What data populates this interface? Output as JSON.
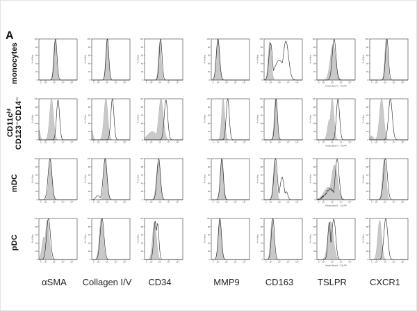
{
  "figure": {
    "panel_letter": "A",
    "row_labels": [
      {
        "lines": [
          "monocytes"
        ]
      },
      {
        "lines": [
          "CD11cʰⁱ",
          "CD123⁻CD14⁻"
        ]
      },
      {
        "lines": [
          "mDC"
        ]
      },
      {
        "lines": [
          "pDC"
        ]
      }
    ],
    "column_labels": [
      "αSMA",
      "Collagen I/V",
      "CD34",
      "MMP9",
      "CD163",
      "TSLPR",
      "CXCR1"
    ]
  },
  "colors": {
    "histogram_fill": "#c9c9c9",
    "histogram_fill_edge": "#9a9a9a",
    "open_curve_line": "#1a1a1a",
    "axis": "#222222",
    "tick_text": "#444444",
    "background": "#ffffff"
  },
  "chart_data": {
    "type": "area",
    "subtype": "flow-cytometry-overlay-histograms",
    "title": "",
    "rows": [
      "monocytes",
      "CD11cʰⁱ CD123⁻CD14⁻",
      "mDC",
      "pDC"
    ],
    "columns": [
      "αSMA",
      "Collagen I/V",
      "CD34",
      "MMP9",
      "CD163",
      "TSLPR",
      "CXCR1"
    ],
    "y_axis": {
      "label": "% of Max",
      "ticks": [
        "100",
        "80",
        "60",
        "40",
        "20",
        "0"
      ],
      "range": [
        0,
        100
      ],
      "grid": false
    },
    "x_axis": {
      "ticks": [
        "0",
        "10²",
        "10³",
        "10⁴",
        "10⁵"
      ],
      "scale": "log",
      "captions": [
        "<FL2-H>: aSMA",
        "<FL1-H>: Collagen I and V",
        "<FL2-H>: CD34",
        "<FL1-H>: MMP9",
        "<FL2-H>: CD163",
        "Pacific Blue-A :: TSLPR",
        "<FL2-H>: CXCR1"
      ]
    },
    "series_note": "filled = gray filled histogram, open = black outline histogram; peaks as [center 0-1, width, height 0-1]",
    "panels": [
      {
        "row": 0,
        "col": 0,
        "filled": [
          [
            0.42,
            0.036,
            0.97
          ]
        ],
        "open": [
          [
            0.435,
            0.038,
            1.0
          ]
        ],
        "jag": 0
      },
      {
        "row": 0,
        "col": 1,
        "filled": [
          [
            0.4,
            0.035,
            1.0
          ]
        ],
        "open": [
          [
            0.41,
            0.037,
            1.0
          ]
        ],
        "jag": 0
      },
      {
        "row": 0,
        "col": 2,
        "filled": [
          [
            0.4,
            0.035,
            0.95
          ]
        ],
        "open": [
          [
            0.42,
            0.037,
            1.0
          ]
        ],
        "jag": 0
      },
      {
        "row": 0,
        "col": 3,
        "filled": [
          [
            0.17,
            0.042,
            1.0
          ]
        ],
        "open": [
          [
            0.175,
            0.044,
            1.0
          ]
        ],
        "jag": 0
      },
      {
        "row": 0,
        "col": 4,
        "filled": [
          [
            0.15,
            0.04,
            0.95
          ]
        ],
        "open": [
          [
            0.17,
            0.045,
            0.9
          ],
          [
            0.4,
            0.13,
            0.48
          ],
          [
            0.57,
            0.07,
            0.95
          ]
        ],
        "jag": 0.015
      },
      {
        "row": 0,
        "col": 5,
        "filled": [
          [
            0.42,
            0.07,
            0.88
          ]
        ],
        "open": [
          [
            0.45,
            0.048,
            1.0
          ]
        ],
        "jag": 0.02
      },
      {
        "row": 0,
        "col": 6,
        "filled": [
          [
            0.43,
            0.036,
            1.0
          ]
        ],
        "open": [
          [
            0.45,
            0.038,
            1.0
          ]
        ],
        "jag": 0
      },
      {
        "row": 1,
        "col": 0,
        "filled": [
          [
            0.33,
            0.05,
            1.0
          ],
          [
            0.0,
            0.03,
            0.25
          ]
        ],
        "open": [
          [
            0.5,
            0.04,
            0.97
          ]
        ],
        "jag": 0
      },
      {
        "row": 1,
        "col": 1,
        "filled": [
          [
            0.37,
            0.05,
            1.0
          ],
          [
            0.0,
            0.03,
            0.25
          ]
        ],
        "open": [
          [
            0.54,
            0.04,
            1.0
          ]
        ],
        "jag": 0
      },
      {
        "row": 1,
        "col": 2,
        "filled": [
          [
            0.43,
            0.06,
            1.0
          ],
          [
            0.2,
            0.12,
            0.2
          ]
        ],
        "open": [
          [
            0.56,
            0.045,
            0.97
          ]
        ],
        "jag": 0
      },
      {
        "row": 1,
        "col": 3,
        "filled": [
          [
            0.31,
            0.04,
            1.0
          ]
        ],
        "open": [
          [
            0.43,
            0.04,
            1.0
          ]
        ],
        "jag": 0
      },
      {
        "row": 1,
        "col": 4,
        "filled": [
          [
            0.3,
            0.035,
            1.0
          ]
        ],
        "open": [
          [
            0.315,
            0.035,
            1.0
          ]
        ],
        "jag": 0
      },
      {
        "row": 1,
        "col": 5,
        "filled": [
          [
            0.4,
            0.045,
            1.0
          ],
          [
            0.33,
            0.05,
            0.5
          ]
        ],
        "open": [
          [
            0.55,
            0.042,
            1.0
          ]
        ],
        "jag": 0.02
      },
      {
        "row": 1,
        "col": 6,
        "filled": [
          [
            0.31,
            0.055,
            1.0
          ],
          [
            0.05,
            0.04,
            0.1
          ]
        ],
        "open": [
          [
            0.54,
            0.05,
            1.0
          ]
        ],
        "jag": 0
      },
      {
        "row": 2,
        "col": 0,
        "filled": [
          [
            0.3,
            0.042,
            0.97
          ]
        ],
        "open": [
          [
            0.29,
            0.05,
            1.0
          ]
        ],
        "jag": 0
      },
      {
        "row": 2,
        "col": 1,
        "filled": [
          [
            0.36,
            0.042,
            1.0
          ]
        ],
        "open": [
          [
            0.35,
            0.05,
            1.0
          ],
          [
            0.16,
            0.05,
            0.1
          ]
        ],
        "jag": 0
      },
      {
        "row": 2,
        "col": 2,
        "filled": [
          [
            0.36,
            0.05,
            0.93
          ]
        ],
        "open": [
          [
            0.37,
            0.045,
            1.0
          ]
        ],
        "jag": 0
      },
      {
        "row": 2,
        "col": 3,
        "filled": [
          [
            0.28,
            0.042,
            1.0
          ]
        ],
        "open": [
          [
            0.275,
            0.04,
            1.0
          ]
        ],
        "jag": 0
      },
      {
        "row": 2,
        "col": 4,
        "filled": [
          [
            0.28,
            0.04,
            0.97
          ]
        ],
        "open": [
          [
            0.3,
            0.045,
            1.0
          ],
          [
            0.47,
            0.05,
            0.55
          ],
          [
            0.58,
            0.04,
            0.2
          ]
        ],
        "jag": 0.02
      },
      {
        "row": 2,
        "col": 5,
        "filled": [
          [
            0.46,
            0.08,
            0.85
          ],
          [
            0.3,
            0.12,
            0.3
          ]
        ],
        "open": [
          [
            0.53,
            0.05,
            1.0
          ],
          [
            0.35,
            0.12,
            0.25
          ]
        ],
        "jag": 0.06
      },
      {
        "row": 2,
        "col": 6,
        "filled": [
          [
            0.38,
            0.045,
            1.0
          ]
        ],
        "open": [
          [
            0.41,
            0.05,
            1.0
          ]
        ],
        "jag": 0
      },
      {
        "row": 3,
        "col": 0,
        "filled": [
          [
            0.22,
            0.05,
            0.97
          ],
          [
            0.13,
            0.05,
            0.55
          ]
        ],
        "open": [
          [
            0.25,
            0.05,
            1.0
          ]
        ],
        "jag": 0
      },
      {
        "row": 3,
        "col": 1,
        "filled": [
          [
            0.25,
            0.05,
            1.0
          ]
        ],
        "open": [
          [
            0.27,
            0.05,
            1.0
          ]
        ],
        "jag": 0
      },
      {
        "row": 3,
        "col": 2,
        "filled": [
          [
            0.26,
            0.05,
            0.93
          ]
        ],
        "open": [
          [
            0.28,
            0.04,
            0.93
          ],
          [
            0.34,
            0.035,
            0.88
          ]
        ],
        "jag": 0
      },
      {
        "row": 3,
        "col": 3,
        "filled": [
          [
            0.22,
            0.04,
            1.0
          ]
        ],
        "open": [
          [
            0.225,
            0.042,
            1.0
          ]
        ],
        "jag": 0
      },
      {
        "row": 3,
        "col": 4,
        "filled": [
          [
            0.21,
            0.04,
            0.97
          ]
        ],
        "open": [
          [
            0.23,
            0.04,
            1.0
          ]
        ],
        "jag": 0
      },
      {
        "row": 3,
        "col": 5,
        "filled": [
          [
            0.36,
            0.07,
            0.93
          ]
        ],
        "open": [
          [
            0.32,
            0.035,
            0.9
          ],
          [
            0.44,
            0.05,
            1.0
          ]
        ],
        "jag": 0.05
      },
      {
        "row": 3,
        "col": 6,
        "filled": [
          [
            0.26,
            0.05,
            0.96
          ]
        ],
        "open": [
          [
            0.42,
            0.05,
            1.0
          ]
        ],
        "jag": 0.03
      }
    ]
  }
}
